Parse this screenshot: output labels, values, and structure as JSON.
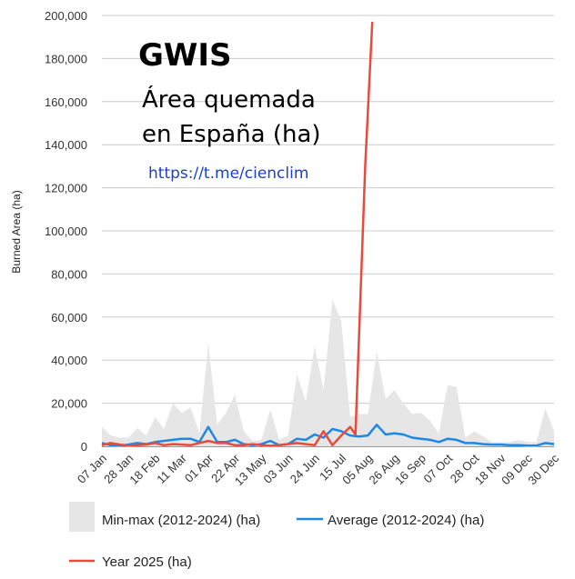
{
  "overlay": {
    "title": "GWIS",
    "subtitle_line1": "Área quemada",
    "subtitle_line2": "en España (ha)",
    "link": "https://t.me/cienclim"
  },
  "chart_data": {
    "type": "area",
    "ylabel": "Burned Area (ha)",
    "xlabel": "",
    "ylim": [
      0,
      200000
    ],
    "yticks": [
      0,
      20000,
      40000,
      60000,
      80000,
      100000,
      120000,
      140000,
      160000,
      180000,
      200000
    ],
    "ytick_labels": [
      "0",
      "20,000",
      "40,000",
      "60,000",
      "80,000",
      "100,000",
      "120,000",
      "140,000",
      "160,000",
      "180,000",
      "200,000"
    ],
    "grid": true,
    "week_index_range": [
      0,
      51
    ],
    "x_tick_labels": [
      "07 Jan",
      "28 Jan",
      "18 Feb",
      "11 Mar",
      "01 Apr",
      "22 Apr",
      "13 May",
      "03 Jun",
      "24 Jun",
      "15 Jul",
      "05 Aug",
      "26 Aug",
      "16 Sep",
      "07 Oct",
      "28 Oct",
      "18 Nov",
      "09 Dec",
      "30 Dec"
    ],
    "x_tick_positions": [
      0,
      3,
      6,
      9,
      12,
      15,
      18,
      21,
      24,
      27,
      30,
      33,
      36,
      39,
      42,
      45,
      48,
      51
    ],
    "series": [
      {
        "name": "Min-max (2012-2024) (ha)",
        "kind": "band",
        "color": "#e6e6e6",
        "min": [
          0,
          0,
          0,
          0,
          0,
          0,
          0,
          0,
          0,
          0,
          0,
          0,
          0,
          0,
          0,
          0,
          0,
          0,
          0,
          0,
          0,
          0,
          0,
          0,
          0,
          0,
          0,
          0,
          0,
          0,
          0,
          0,
          0,
          0,
          0,
          0,
          0,
          0,
          0,
          0,
          0,
          0,
          0,
          0,
          0,
          0,
          0,
          0,
          0,
          0,
          0,
          0
        ],
        "max": [
          9000,
          5000,
          4000,
          4000,
          8500,
          5000,
          13500,
          8000,
          20000,
          15500,
          18000,
          6000,
          48000,
          10000,
          15500,
          24000,
          7000,
          2500,
          3000,
          17000,
          3000,
          5000,
          33500,
          21000,
          46500,
          26000,
          68000,
          58000,
          13500,
          15000,
          15000,
          44000,
          22000,
          26000,
          20000,
          15000,
          15500,
          12000,
          6000,
          28500,
          27500,
          4000,
          7000,
          4500,
          2000,
          2000,
          2000,
          3000,
          2000,
          2000,
          17500,
          7000
        ]
      },
      {
        "name": "Average (2012-2024) (ha)",
        "kind": "line",
        "color": "#1e88e5",
        "values": [
          1500,
          500,
          300,
          800,
          1500,
          1000,
          2000,
          2500,
          3000,
          3500,
          3500,
          2000,
          9000,
          2000,
          2000,
          3000,
          1000,
          500,
          1000,
          2500,
          500,
          1000,
          3500,
          3000,
          5500,
          4000,
          8000,
          7000,
          5000,
          4500,
          5000,
          10000,
          5500,
          6000,
          5500,
          4000,
          3500,
          3000,
          2000,
          3500,
          3000,
          1500,
          1500,
          1000,
          800,
          800,
          500,
          500,
          300,
          300,
          1500,
          1000
        ]
      },
      {
        "name": "Year 2025 (ha)",
        "kind": "line",
        "color": "#e84a3c",
        "x": [
          0,
          1,
          2,
          3,
          4,
          5,
          6,
          7,
          8,
          9,
          10,
          11,
          12,
          13,
          14,
          15,
          16,
          17,
          18,
          19,
          20,
          21,
          22,
          23,
          24,
          25,
          26,
          27,
          28,
          28.6,
          29.7,
          30.5
        ],
        "values": [
          500,
          1500,
          800,
          300,
          500,
          800,
          1500,
          500,
          1000,
          800,
          500,
          1500,
          2500,
          1500,
          1500,
          500,
          500,
          1000,
          500,
          200,
          500,
          1000,
          1500,
          1000,
          500,
          7000,
          500,
          5000,
          9000,
          5500,
          130000,
          197000
        ]
      }
    ]
  }
}
